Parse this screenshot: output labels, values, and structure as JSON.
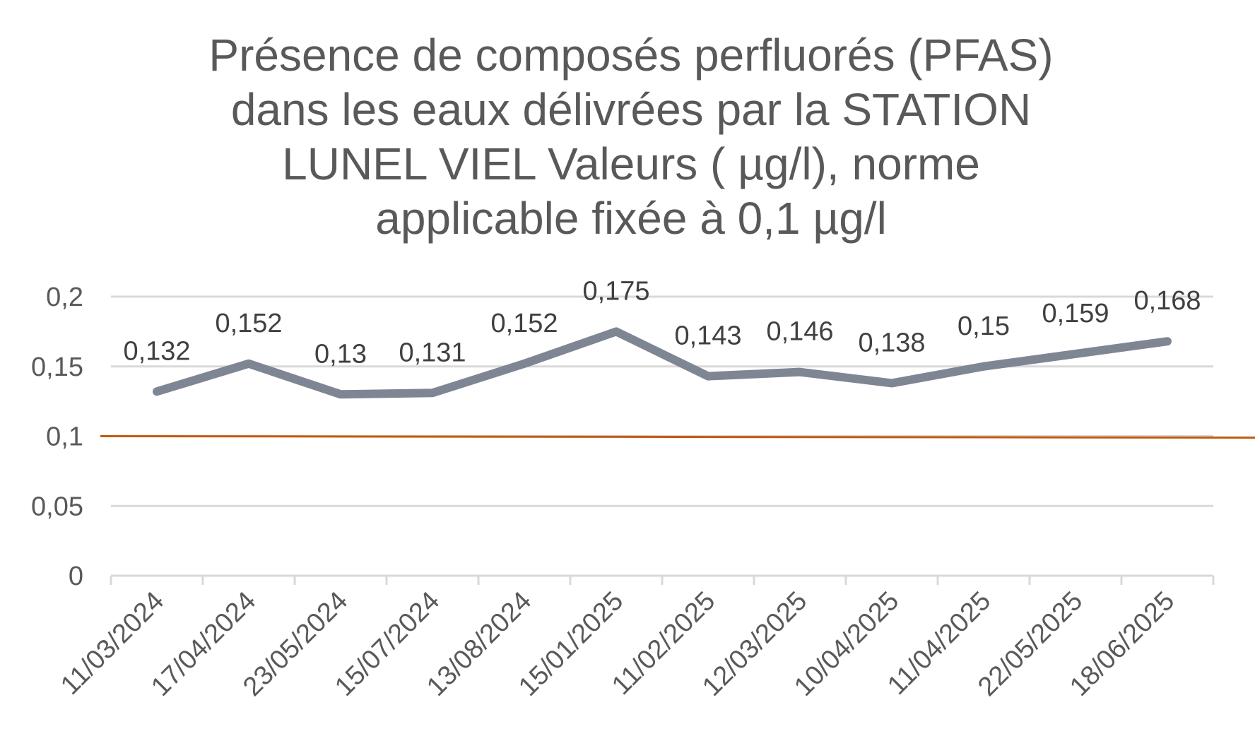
{
  "chart_data": {
    "type": "line",
    "title_lines": [
      "Présence de composés perfluorés (PFAS)",
      "dans les eaux délivrées par la STATION",
      "LUNEL VIEL Valeurs ( µg/l), norme",
      "applicable fixée à 0,1 µg/l"
    ],
    "categories": [
      "11/03/2024",
      "17/04/2024",
      "23/05/2024",
      "15/07/2024",
      "13/08/2024",
      "15/01/2025",
      "11/02/2025",
      "12/03/2025",
      "10/04/2025",
      "11/04/2025",
      "22/05/2025",
      "18/06/2025"
    ],
    "series": [
      {
        "values": [
          0.132,
          0.152,
          0.13,
          0.131,
          0.152,
          0.175,
          0.143,
          0.146,
          0.138,
          0.15,
          0.159,
          0.168
        ],
        "data_labels": [
          "0,132",
          "0,152",
          "0,13",
          "0,131",
          "0,152",
          "0,175",
          "0,143",
          "0,146",
          "0,138",
          "0,15",
          "0,159",
          "0,168"
        ],
        "color": "#7f8693"
      }
    ],
    "reference_line": {
      "value": 0.1,
      "color": "#c55a11"
    },
    "yticks": [
      0,
      0.05,
      0.1,
      0.15,
      0.2
    ],
    "ytick_labels": [
      "0",
      "0,05",
      "0,1",
      "0,15",
      "0,2"
    ],
    "ylim": [
      0,
      0.2
    ],
    "grid": true,
    "grid_color": "#d9d9d9",
    "legend": false,
    "xlabel": "",
    "ylabel": ""
  }
}
